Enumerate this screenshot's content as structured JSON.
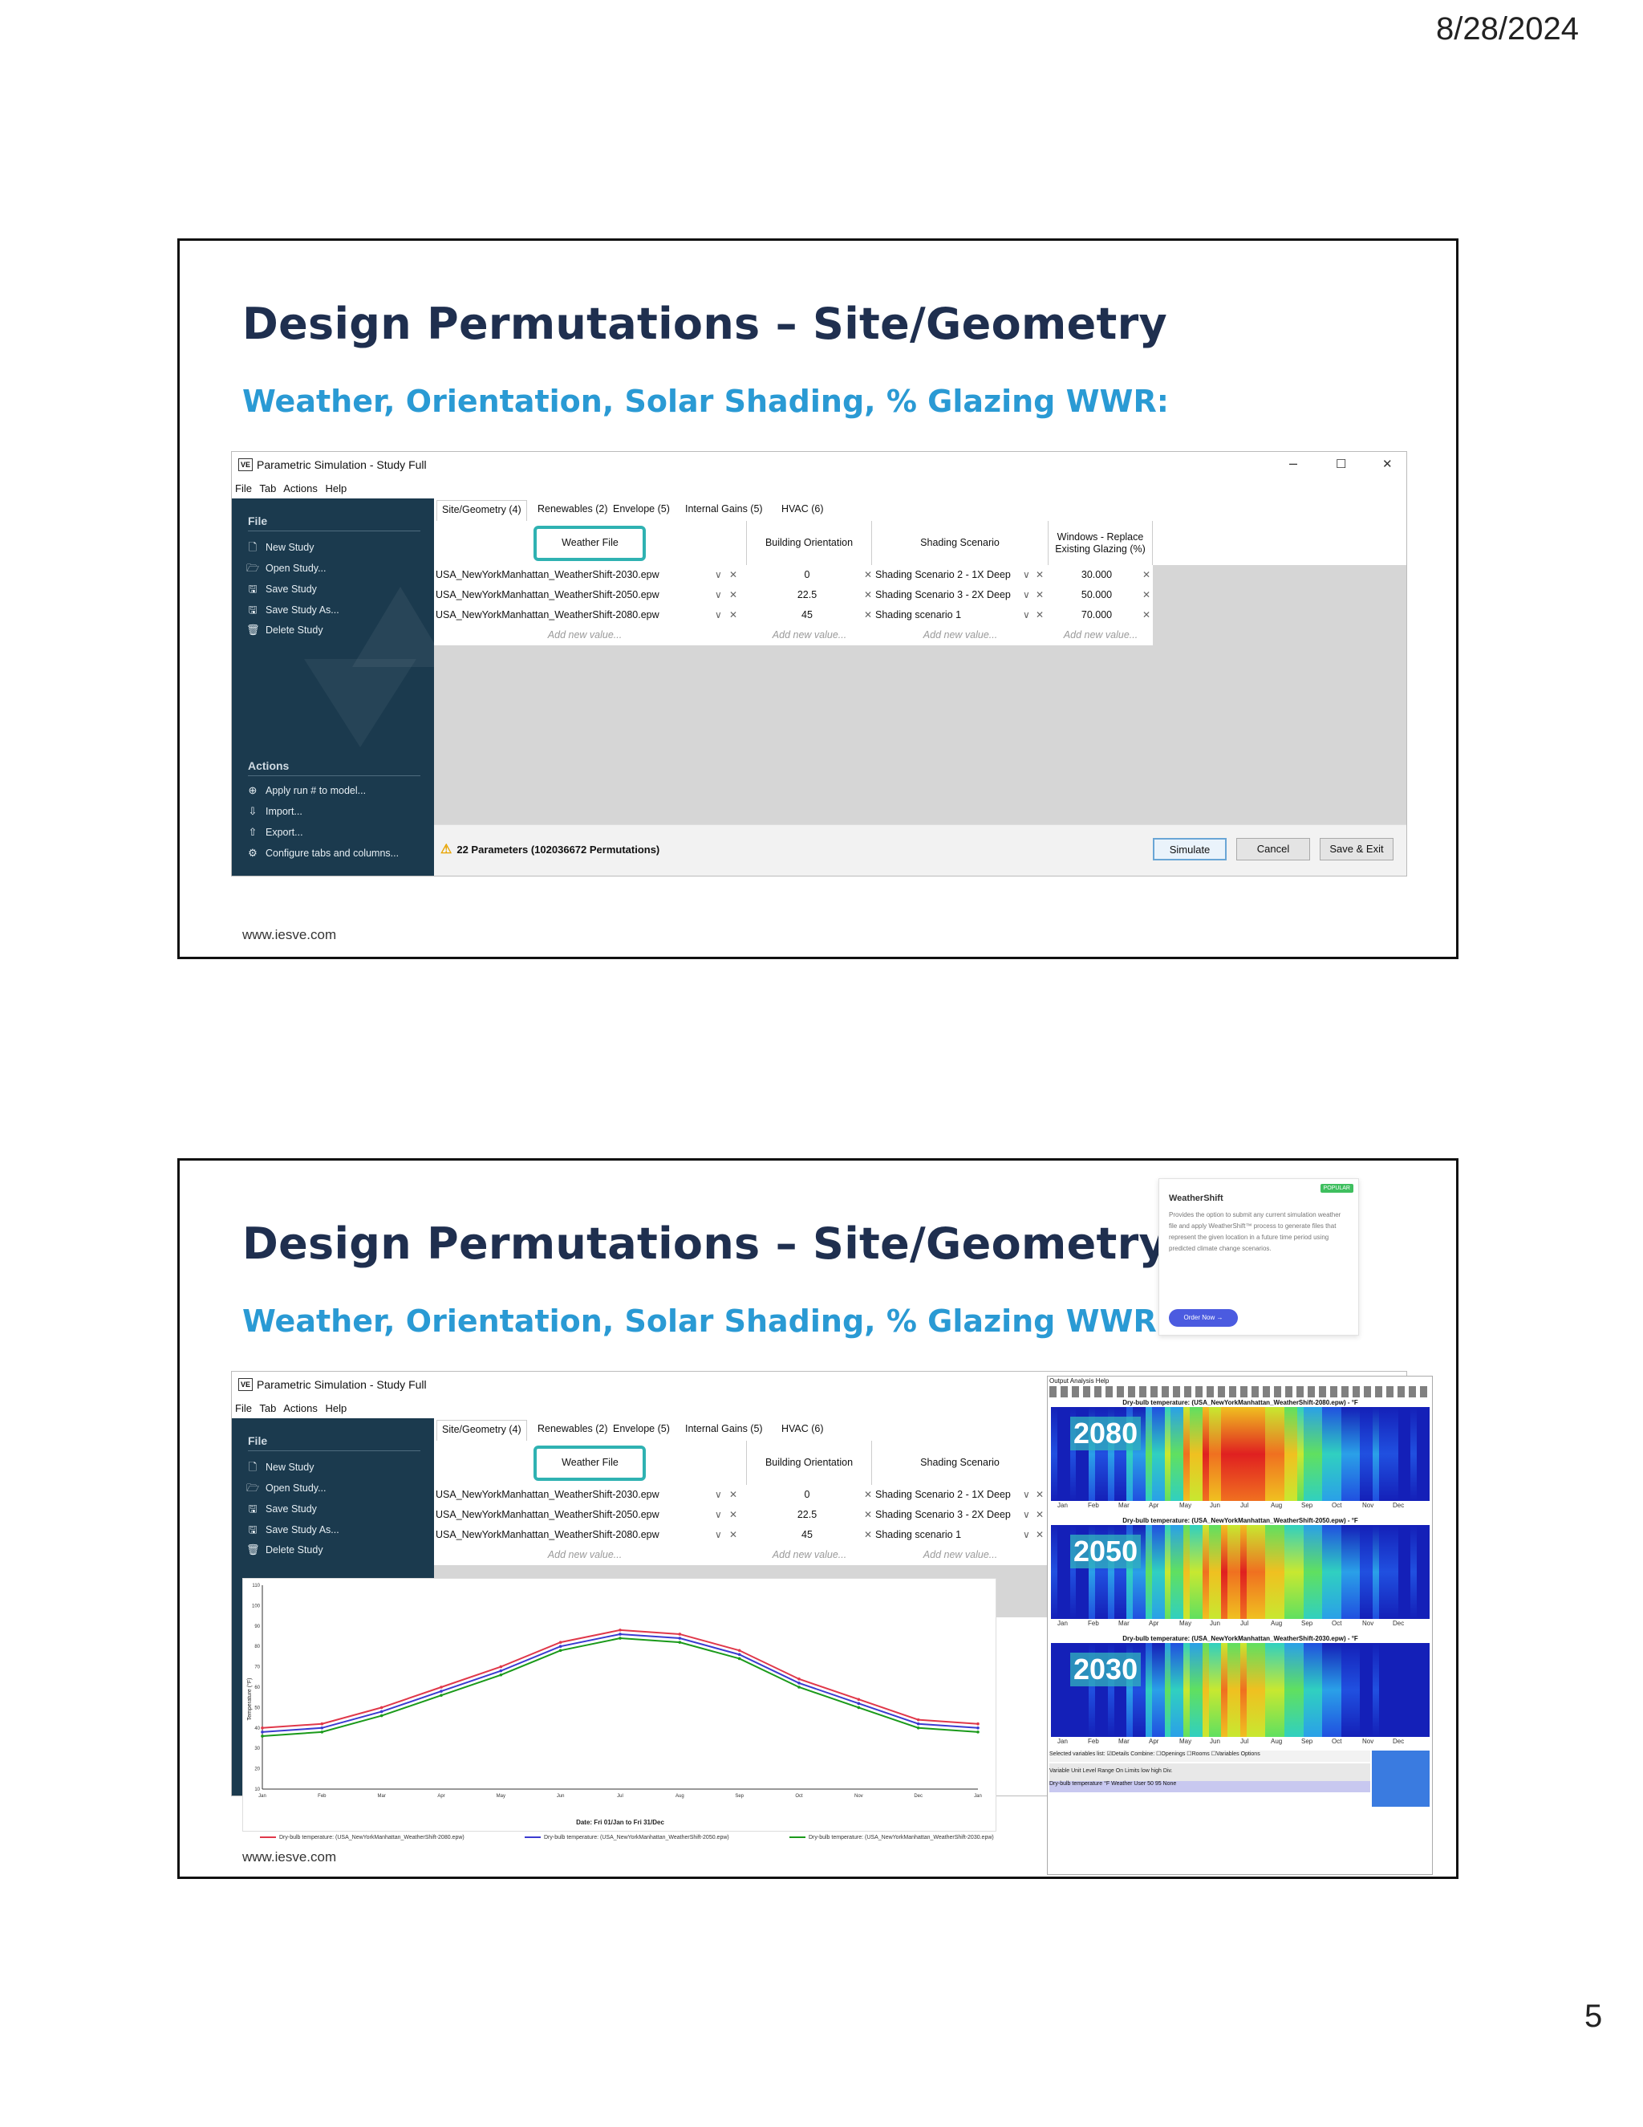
{
  "date": "8/28/2024",
  "page_number": "5",
  "slides": [
    {
      "title": "Design Permutations – Site/Geometry",
      "subtitle": "Weather, Orientation, Solar Shading, % Glazing WWR:",
      "footer": "www.iesve.com"
    },
    {
      "title": "Design Permutations – Site/Geometry",
      "subtitle": "Weather, Orientation, Solar Shading, % Glazing WWR:",
      "footer": "www.iesve.com"
    }
  ],
  "app": {
    "logo": "VE",
    "window_title": "Parametric Simulation - Study Full",
    "menu": [
      "File",
      "Tab",
      "Actions",
      "Help"
    ],
    "window_controls": {
      "minimize": "–",
      "maximize": "☐",
      "close": "✕"
    },
    "sidebar": {
      "file_heading": "File",
      "file_items": [
        {
          "label": "New Study",
          "icon": "new-file-icon",
          "glyph": "🗋"
        },
        {
          "label": "Open Study...",
          "icon": "open-folder-icon",
          "glyph": "🗁"
        },
        {
          "label": "Save Study",
          "icon": "save-icon",
          "glyph": "🖫"
        },
        {
          "label": "Save Study As...",
          "icon": "save-as-icon",
          "glyph": "🖫"
        },
        {
          "label": "Delete Study",
          "icon": "trash-icon",
          "glyph": "🗑"
        }
      ],
      "actions_heading": "Actions",
      "action_items": [
        {
          "label": "Apply run # to model...",
          "icon": "apply-icon",
          "glyph": "⊕"
        },
        {
          "label": "Import...",
          "icon": "import-icon",
          "glyph": "⇩"
        },
        {
          "label": "Export...",
          "icon": "export-icon",
          "glyph": "⇧"
        },
        {
          "label": "Configure tabs and columns...",
          "icon": "gear-icon",
          "glyph": "⚙"
        }
      ]
    },
    "tabs": [
      "Site/Geometry (4)",
      "Renewables (2)",
      "Envelope (5)",
      "Internal Gains (5)",
      "HVAC (6)"
    ],
    "columns": [
      "Weather File",
      "Building Orientation",
      "Shading Scenario",
      "Windows - Replace Existing Glazing (%)"
    ],
    "rows": [
      [
        "USA_NewYorkManhattan_WeatherShift-2030.epw",
        "0",
        "Shading Scenario 2 - 1X Deep",
        "30.000"
      ],
      [
        "USA_NewYorkManhattan_WeatherShift-2050.epw",
        "22.5",
        "Shading Scenario 3 - 2X Deep",
        "50.000"
      ],
      [
        "USA_NewYorkManhattan_WeatherShift-2080.epw",
        "45",
        "Shading scenario 1",
        "70.000"
      ]
    ],
    "add_new_value": "Add new value...",
    "dropdown_glyph": "∨",
    "remove_glyph": "✕",
    "status": "22 Parameters (102036672 Permutations)",
    "buttons": {
      "simulate": "Simulate",
      "cancel": "Cancel",
      "save_exit": "Save & Exit"
    }
  },
  "weathershift_card": {
    "badge": "POPULAR",
    "title": "WeatherShift",
    "description": "Provides the option to submit any current simulation weather file and apply WeatherShift™ process to generate files that represent the given location in a future time period using predicted climate change scenarios.",
    "button": "Order Now →"
  },
  "line_chart": {
    "date_label": "Date: Fri 01/Jan to Fri 31/Dec",
    "ylabel": "Temperature (°F)",
    "legend": [
      {
        "label": "Dry-bulb temperature: (USA_NewYorkManhattan_WeatherShift-2080.epw)",
        "color": "#e0384a"
      },
      {
        "label": "Dry-bulb temperature: (USA_NewYorkManhattan_WeatherShift-2050.epw)",
        "color": "#3b3bd0"
      },
      {
        "label": "Dry-bulb temperature: (USA_NewYorkManhattan_WeatherShift-2030.epw)",
        "color": "#1a9a1a"
      }
    ]
  },
  "chart_data": {
    "type": "line",
    "x": [
      "Jan",
      "Feb",
      "Mar",
      "Apr",
      "May",
      "Jun",
      "Jul",
      "Aug",
      "Sep",
      "Oct",
      "Nov",
      "Dec",
      "Jan"
    ],
    "ylim": [
      10,
      110
    ],
    "yticks": [
      10,
      20,
      30,
      40,
      50,
      60,
      70,
      80,
      90,
      100,
      110
    ],
    "series": [
      {
        "name": "Dry-bulb temperature: (USA_NewYorkManhattan_WeatherShift-2080.epw)",
        "values": [
          40,
          42,
          50,
          60,
          70,
          82,
          88,
          86,
          78,
          64,
          54,
          44,
          42
        ]
      },
      {
        "name": "Dry-bulb temperature: (USA_NewYorkManhattan_WeatherShift-2050.epw)",
        "values": [
          38,
          40,
          48,
          58,
          68,
          80,
          86,
          84,
          76,
          62,
          52,
          42,
          40
        ]
      },
      {
        "name": "Dry-bulb temperature: (USA_NewYorkManhattan_WeatherShift-2030.epw)",
        "values": [
          36,
          38,
          46,
          56,
          66,
          78,
          84,
          82,
          74,
          60,
          50,
          40,
          38
        ]
      }
    ]
  },
  "analysis_window": {
    "menu": "Output  Analysis  Help",
    "heatmaps": [
      {
        "label": "2080",
        "title": "Dry-bulb temperature: (USA_NewYorkManhattan_WeatherShift-2080.epw) - °F"
      },
      {
        "label": "2050",
        "title": "Dry-bulb temperature: (USA_NewYorkManhattan_WeatherShift-2050.epw) - °F"
      },
      {
        "label": "2030",
        "title": "Dry-bulb temperature: (USA_NewYorkManhattan_WeatherShift-2030.epw) - °F"
      }
    ],
    "months": [
      "Jan",
      "Feb",
      "Mar",
      "Apr",
      "May",
      "Jun",
      "Jul",
      "Aug",
      "Sep",
      "Oct",
      "Nov",
      "Dec"
    ],
    "variables_bar": "Selected variables list:   ☑Details   Combine: ☐Openings   ☐Rooms   ☐Variables   Options",
    "table_header": "Variable          Unit     Level    Range On     Limits low  high     Div.",
    "table_row": "Dry-bulb temperature      °F     Weather    User     50     95     None"
  }
}
